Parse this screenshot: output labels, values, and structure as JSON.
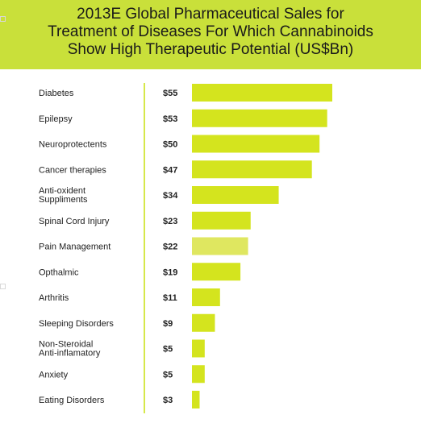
{
  "chart_data": {
    "type": "bar",
    "orientation": "horizontal",
    "title_lines": [
      "2013E Global Pharmaceutical Sales for",
      "Treatment of Diseases For Which Cannabinoids",
      "Show High Therapeutic Potential (US$Bn)"
    ],
    "categories": [
      [
        "Diabetes"
      ],
      [
        "Epilepsy"
      ],
      [
        "Neuroprotectents"
      ],
      [
        "Cancer therapies"
      ],
      [
        "Anti-oxident",
        "Suppliments"
      ],
      [
        "Spinal Cord Injury"
      ],
      [
        "Pain Management"
      ],
      [
        "Opthalmic"
      ],
      [
        "Arthritis"
      ],
      [
        "Sleeping Disorders"
      ],
      [
        "Non-Steroidal",
        "Anti-inflamatory"
      ],
      [
        "Anxiety"
      ],
      [
        "Eating Disorders"
      ]
    ],
    "values": [
      55,
      53,
      50,
      47,
      34,
      23,
      22,
      19,
      11,
      9,
      5,
      5,
      3
    ],
    "value_labels": [
      "$55",
      "$53",
      "$50",
      "$47",
      "$34",
      "$23",
      "$22",
      "$19",
      "$11",
      "$9",
      "$5",
      "$5",
      "$3"
    ],
    "xlim": [
      0,
      55
    ],
    "grid": false,
    "bar_color": "#d4e41e",
    "highlight_index": 6,
    "highlight_color": "#dfe760",
    "title_band_color": "#c9e03a"
  }
}
